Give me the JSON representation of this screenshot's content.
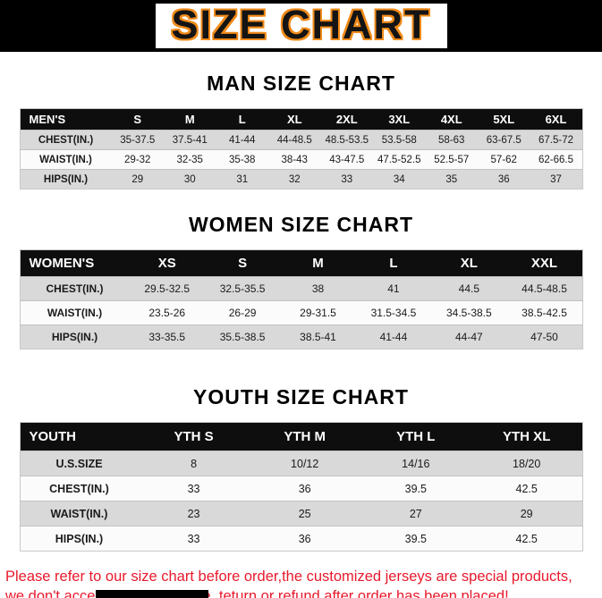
{
  "colors": {
    "accent_orange": "#f08a18",
    "disclaimer_red": "#e8192c",
    "row_gray": "#d9d9d9",
    "header_black": "#0e0e0e"
  },
  "banner": {
    "title": "SIZE CHART"
  },
  "man_section": {
    "heading": "MAN SIZE CHART",
    "table": {
      "header": [
        "MEN'S",
        "S",
        "M",
        "L",
        "XL",
        "2XL",
        "3XL",
        "4XL",
        "5XL",
        "6XL"
      ],
      "rows": [
        {
          "label": "CHEST(IN.)",
          "values": [
            "35-37.5",
            "37.5-41",
            "41-44",
            "44-48.5",
            "48.5-53.5",
            "53.5-58",
            "58-63",
            "63-67.5",
            "67.5-72"
          ]
        },
        {
          "label": "WAIST(IN.)",
          "values": [
            "29-32",
            "32-35",
            "35-38",
            "38-43",
            "43-47.5",
            "47.5-52.5",
            "52.5-57",
            "57-62",
            "62-66.5"
          ]
        },
        {
          "label": "HIPS(IN.)",
          "values": [
            "29",
            "30",
            "31",
            "32",
            "33",
            "34",
            "35",
            "36",
            "37"
          ]
        }
      ]
    }
  },
  "women_section": {
    "heading": "WOMEN SIZE CHART",
    "table": {
      "header": [
        "WOMEN'S",
        "XS",
        "S",
        "M",
        "L",
        "XL",
        "XXL"
      ],
      "rows": [
        {
          "label": "CHEST(IN.)",
          "values": [
            "29.5-32.5",
            "32.5-35.5",
            "38",
            "41",
            "44.5",
            "44.5-48.5"
          ]
        },
        {
          "label": "WAIST(IN.)",
          "values": [
            "23.5-26",
            "26-29",
            "29-31.5",
            "31.5-34.5",
            "34.5-38.5",
            "38.5-42.5"
          ]
        },
        {
          "label": "HIPS(IN.)",
          "values": [
            "33-35.5",
            "35.5-38.5",
            "38.5-41",
            "41-44",
            "44-47",
            "47-50"
          ]
        }
      ]
    }
  },
  "youth_section": {
    "heading": "YOUTH SIZE CHART",
    "table": {
      "header": [
        "YOUTH",
        "YTH S",
        "YTH M",
        "YTH L",
        "YTH XL"
      ],
      "rows": [
        {
          "label": "U.S.SIZE",
          "values": [
            "8",
            "10/12",
            "14/16",
            "18/20"
          ]
        },
        {
          "label": "CHEST(IN.)",
          "values": [
            "33",
            "36",
            "39.5",
            "42.5"
          ]
        },
        {
          "label": "WAIST(IN.)",
          "values": [
            "23",
            "25",
            "27",
            "29"
          ]
        },
        {
          "label": "HIPS(IN.)",
          "values": [
            "33",
            "36",
            "39.5",
            "42.5"
          ]
        }
      ]
    }
  },
  "disclaimer": {
    "line1": "Please refer to our size chart before order,the customized jerseys are special products,",
    "line2": "we don't accept cancel, change, teturn or refund after order has been placed!"
  }
}
